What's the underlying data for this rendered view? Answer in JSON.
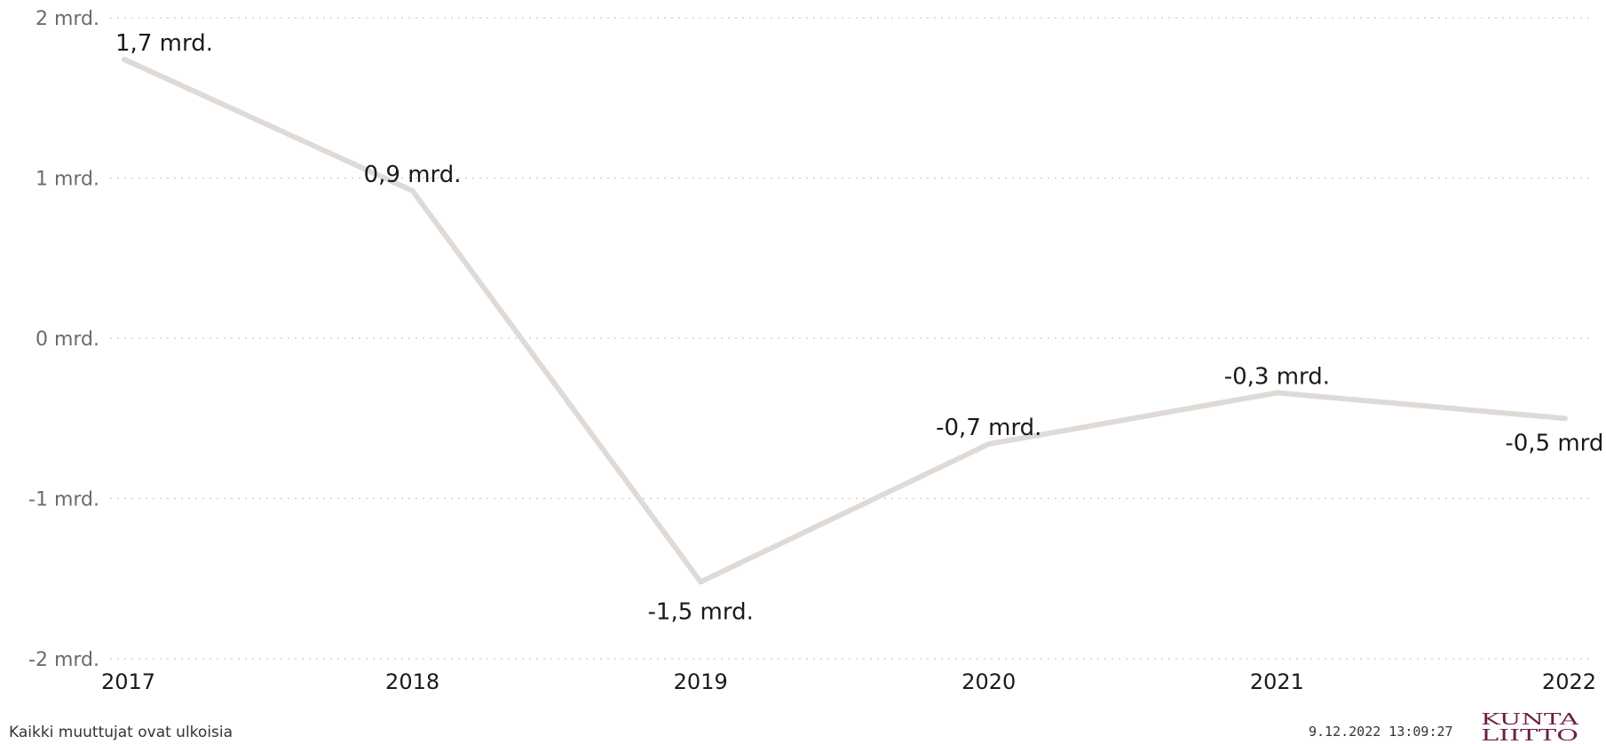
{
  "chart_data": {
    "type": "line",
    "x": [
      "2017",
      "2018",
      "2019",
      "2020",
      "2021",
      "2022"
    ],
    "series": [
      {
        "values": [
          1.74,
          0.92,
          -1.52,
          -0.66,
          -0.34,
          -0.5
        ]
      }
    ],
    "data_labels": [
      "1,7 mrd.",
      "0,9 mrd.",
      "-1,5 mrd.",
      "-0,7 mrd.",
      "-0,3 mrd.",
      "-0,5 mrd."
    ],
    "ylim": [
      -2,
      2
    ],
    "yticks": [
      {
        "value": 2,
        "label": "2 mrd."
      },
      {
        "value": 1,
        "label": "1 mrd."
      },
      {
        "value": 0,
        "label": "0 mrd."
      },
      {
        "value": -1,
        "label": "-1 mrd."
      },
      {
        "value": -2,
        "label": "-2 mrd."
      }
    ],
    "grid": true,
    "line_color": "#e0dad6",
    "grid_color": "#cccccc"
  },
  "footer": {
    "note": "Kaikki muuttujat ovat ulkoisia",
    "timestamp": "9.12.2022 13:09:27"
  },
  "logo": {
    "top": "KUNTA",
    "bottom": "LIITTO",
    "color": "#6e1d47"
  }
}
